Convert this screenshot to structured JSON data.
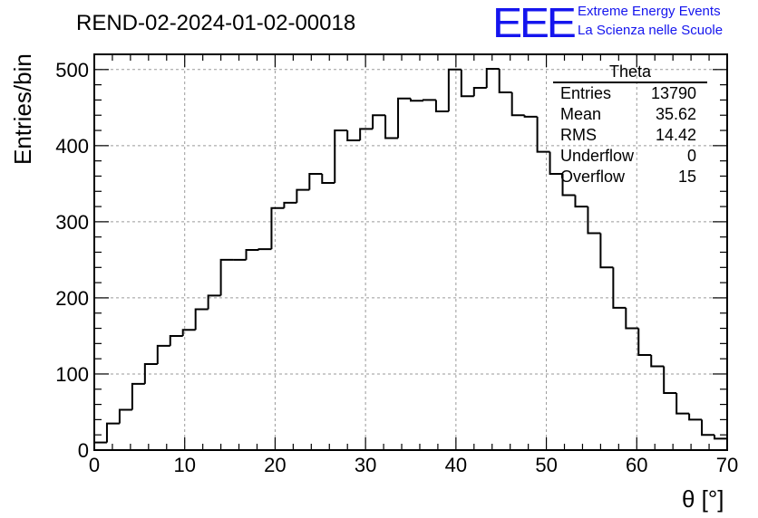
{
  "header": {
    "title": "REND-02-2024-01-02-00018",
    "logo_text": "EEE",
    "brand_line1": "Extreme Energy Events",
    "brand_line2": "La Scienza nelle Scuole",
    "brand_color": "#1515ee"
  },
  "stats_box": {
    "title": "Theta",
    "rows": [
      {
        "label": "Entries",
        "value": "13790"
      },
      {
        "label": "Mean",
        "value": "35.62"
      },
      {
        "label": "RMS",
        "value": "14.42"
      },
      {
        "label": "Underflow",
        "value": "0"
      },
      {
        "label": "Overflow",
        "value": "15"
      }
    ]
  },
  "chart_data": {
    "type": "histogram",
    "title": "REND-02-2024-01-02-00018",
    "xlabel": "θ [°]",
    "ylabel": "Entries/bin",
    "xlim": [
      0,
      70
    ],
    "ylim": [
      0,
      520
    ],
    "xticks": [
      0,
      10,
      20,
      30,
      40,
      50,
      60,
      70
    ],
    "yticks": [
      0,
      100,
      200,
      300,
      400,
      500
    ],
    "grid": true,
    "line_color": "#000000",
    "bin_width": 1.4,
    "bin_edges_start": 0,
    "values": [
      10,
      35,
      53,
      87,
      113,
      137,
      150,
      158,
      185,
      203,
      250,
      250,
      263,
      264,
      318,
      325,
      342,
      363,
      351,
      420,
      407,
      422,
      440,
      410,
      462,
      459,
      460,
      445,
      500,
      465,
      476,
      501,
      470,
      440,
      438,
      392,
      363,
      335,
      320,
      285,
      240,
      187,
      160,
      125,
      110,
      75,
      48,
      40,
      20,
      15
    ]
  }
}
